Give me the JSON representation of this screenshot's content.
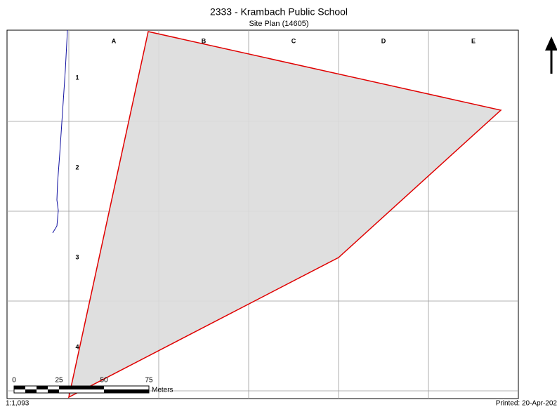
{
  "header": {
    "title": "2333 - Krambach Public School",
    "subtitle": "Site Plan (14605)"
  },
  "grid": {
    "columns": [
      "A",
      "B",
      "C",
      "D",
      "E"
    ],
    "rows": [
      "1",
      "2",
      "3",
      "4"
    ]
  },
  "scale_bar": {
    "labels": [
      0,
      25,
      50,
      75
    ],
    "unit": "Meters"
  },
  "footer": {
    "scale": "1:1,093",
    "printed": "Printed: 20-Apr-202"
  }
}
